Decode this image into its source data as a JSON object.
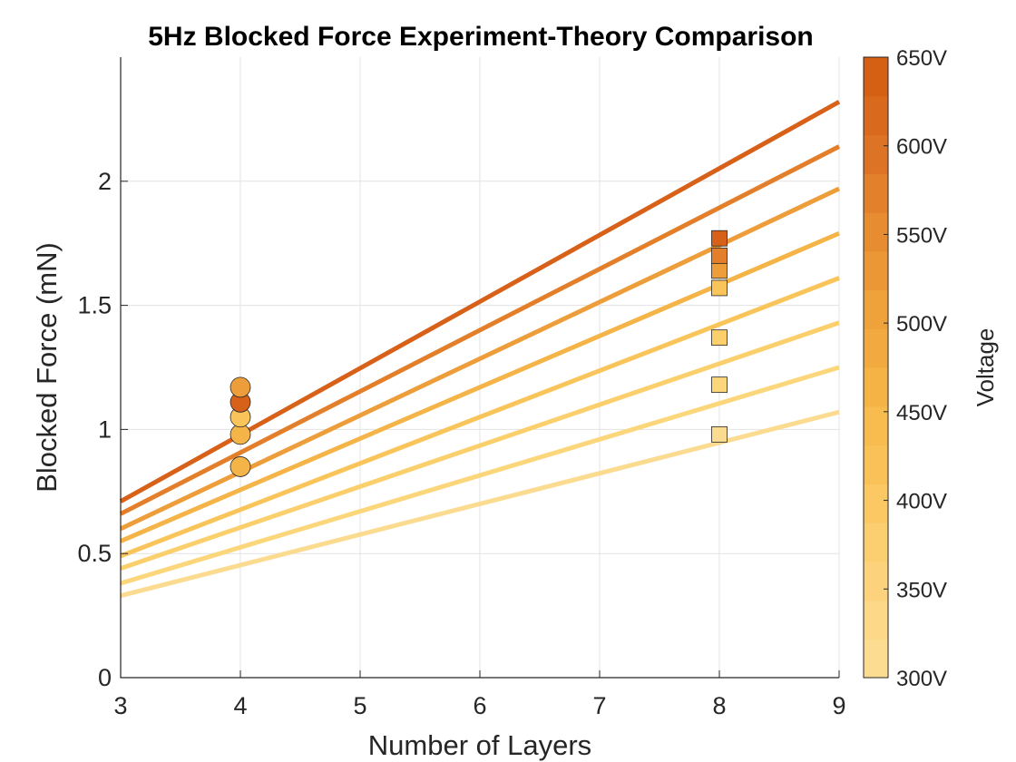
{
  "chart_data": {
    "type": "scatter",
    "title": "5Hz Blocked Force Experiment-Theory Comparison",
    "xlabel": "Number of Layers",
    "ylabel": "Blocked Force (mN)",
    "xlim": [
      3,
      9
    ],
    "ylim": [
      0,
      2.5
    ],
    "xticks": [
      3,
      4,
      5,
      6,
      7,
      8,
      9
    ],
    "xtick_labels": [
      "3",
      "4",
      "5",
      "6",
      "7",
      "8",
      "9"
    ],
    "yticks": [
      0,
      0.5,
      1,
      1.5,
      2
    ],
    "ytick_labels": [
      "0",
      "0.5",
      "1",
      "1.5",
      "2"
    ],
    "grid": true,
    "theory_lines": [
      {
        "voltage": 300,
        "color": "#fbdb8f",
        "points": [
          [
            3,
            0.33
          ],
          [
            9,
            1.07
          ]
        ]
      },
      {
        "voltage": 350,
        "color": "#fbd67a",
        "points": [
          [
            3,
            0.38
          ],
          [
            9,
            1.25
          ]
        ]
      },
      {
        "voltage": 400,
        "color": "#fbcf6b",
        "points": [
          [
            3,
            0.44
          ],
          [
            9,
            1.43
          ]
        ]
      },
      {
        "voltage": 450,
        "color": "#f9c55a",
        "points": [
          [
            3,
            0.49
          ],
          [
            9,
            1.61
          ]
        ]
      },
      {
        "voltage": 500,
        "color": "#f4b448",
        "points": [
          [
            3,
            0.55
          ],
          [
            9,
            1.79
          ]
        ]
      },
      {
        "voltage": 550,
        "color": "#ed9e3a",
        "points": [
          [
            3,
            0.6
          ],
          [
            9,
            1.97
          ]
        ]
      },
      {
        "voltage": 600,
        "color": "#e37f2a",
        "points": [
          [
            3,
            0.66
          ],
          [
            9,
            2.14
          ]
        ]
      },
      {
        "voltage": 650,
        "color": "#d8611a",
        "points": [
          [
            3,
            0.71
          ],
          [
            9,
            2.32
          ]
        ]
      }
    ],
    "experiment_4_layers": {
      "marker": "circle",
      "points": [
        {
          "x": 4,
          "y": 0.85,
          "color": "#f4b448"
        },
        {
          "x": 4,
          "y": 0.98,
          "color": "#f4b448"
        },
        {
          "x": 4,
          "y": 1.05,
          "color": "#f9c55a"
        },
        {
          "x": 4,
          "y": 1.11,
          "color": "#d8611a"
        },
        {
          "x": 4,
          "y": 1.17,
          "color": "#ed9e3a"
        }
      ]
    },
    "experiment_8_layers": {
      "marker": "square",
      "points": [
        {
          "x": 8,
          "y": 0.98,
          "color": "#fbdb8f"
        },
        {
          "x": 8,
          "y": 1.18,
          "color": "#fbd67a"
        },
        {
          "x": 8,
          "y": 1.37,
          "color": "#fbcf6b"
        },
        {
          "x": 8,
          "y": 1.57,
          "color": "#f9c55a"
        },
        {
          "x": 8,
          "y": 1.64,
          "color": "#ed9e3a"
        },
        {
          "x": 8,
          "y": 1.7,
          "color": "#e37f2a"
        },
        {
          "x": 8,
          "y": 1.77,
          "color": "#d8611a"
        }
      ]
    },
    "colorbar": {
      "label": "Voltage",
      "range": [
        300,
        650
      ],
      "ticks": [
        300,
        350,
        400,
        450,
        500,
        550,
        600,
        650
      ],
      "tick_labels": [
        "300V",
        "350V",
        "400V",
        "450V",
        "500V",
        "550V",
        "600V",
        "650V"
      ],
      "colors": [
        "#fcdc91",
        "#fcd888",
        "#fcd37c",
        "#fbce70",
        "#fbc863",
        "#f9c157",
        "#f7bb4e",
        "#f5b346",
        "#f2aa40",
        "#efa13a",
        "#eb9735",
        "#e78c30",
        "#e2802b",
        "#dd7324",
        "#d96a1d",
        "#d55f12"
      ]
    }
  }
}
